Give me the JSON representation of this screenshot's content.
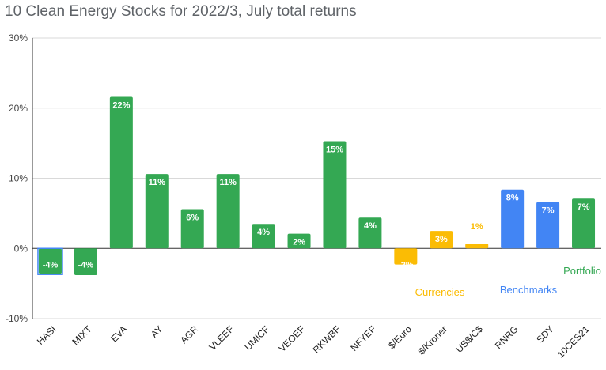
{
  "chart_data": {
    "type": "bar",
    "title": "10 Clean Energy Stocks for 2022/3, July total returns",
    "xlabel": "",
    "ylabel": "",
    "ylim": [
      -10,
      30
    ],
    "y_ticks": [
      "30%",
      "20%",
      "10%",
      "0%",
      "-10%"
    ],
    "y_tick_values": [
      30,
      20,
      10,
      0,
      -10
    ],
    "grid": true,
    "legend": "none",
    "colors": {
      "stocks": "#34a853",
      "currencies": "#fbbc04",
      "benchmarks": "#4285f4",
      "portfolio": "#34a853"
    },
    "categories": [
      "HASI",
      "MIXT",
      "EVA",
      "AY",
      "AGR",
      "VLEEF",
      "UMICF",
      "VEOEF",
      "RKWBF",
      "NFYEF",
      "$/Euro",
      "$/Kroner",
      "US$/C$",
      "RNRG",
      "SDY",
      "10CES21"
    ],
    "values": [
      -3.6,
      -3.8,
      21.6,
      10.6,
      5.6,
      10.6,
      3.5,
      2.1,
      15.3,
      4.4,
      -2.3,
      2.5,
      0.7,
      8.4,
      6.6,
      7.1
    ],
    "data_labels": [
      "-4%",
      "-4%",
      "22%",
      "11%",
      "6%",
      "11%",
      "4%",
      "2%",
      "15%",
      "4%",
      "-2%",
      "3%",
      "1%",
      "8%",
      "7%",
      "7%"
    ],
    "groups": [
      "stocks",
      "stocks",
      "stocks",
      "stocks",
      "stocks",
      "stocks",
      "stocks",
      "stocks",
      "stocks",
      "stocks",
      "currencies",
      "currencies",
      "currencies",
      "benchmarks",
      "benchmarks",
      "portfolio"
    ],
    "annotations": [
      {
        "text": "Currencies",
        "group": "currencies"
      },
      {
        "text": "Benchmarks",
        "group": "benchmarks"
      },
      {
        "text": "Portfolio",
        "group": "portfolio"
      }
    ]
  }
}
